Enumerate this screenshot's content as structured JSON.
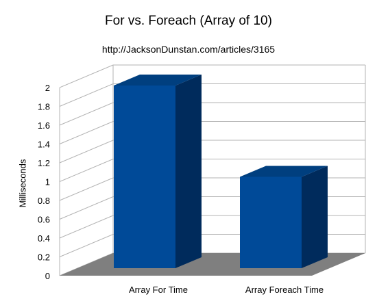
{
  "chart_data": {
    "type": "bar",
    "title": "For vs. Foreach (Array of 10)",
    "subtitle": "http://JacksonDunstan.com/articles/3165",
    "xlabel": "",
    "ylabel": "Milliseconds",
    "categories": [
      "Array For Time",
      "Array Foreach Time"
    ],
    "values": [
      2,
      1
    ],
    "ylim": [
      0,
      2
    ],
    "yticks": [
      "0",
      "0.2",
      "0.4",
      "0.6",
      "0.8",
      "1",
      "1.2",
      "1.4",
      "1.6",
      "1.8",
      "2"
    ],
    "grid": true,
    "three_d": true,
    "legend": "none",
    "colors": {
      "bar_front": "#004a98",
      "bar_top": "#003f7f",
      "bar_side": "#002b5c",
      "floor": "#7f7f7f",
      "grid": "#b3b3b3"
    }
  }
}
